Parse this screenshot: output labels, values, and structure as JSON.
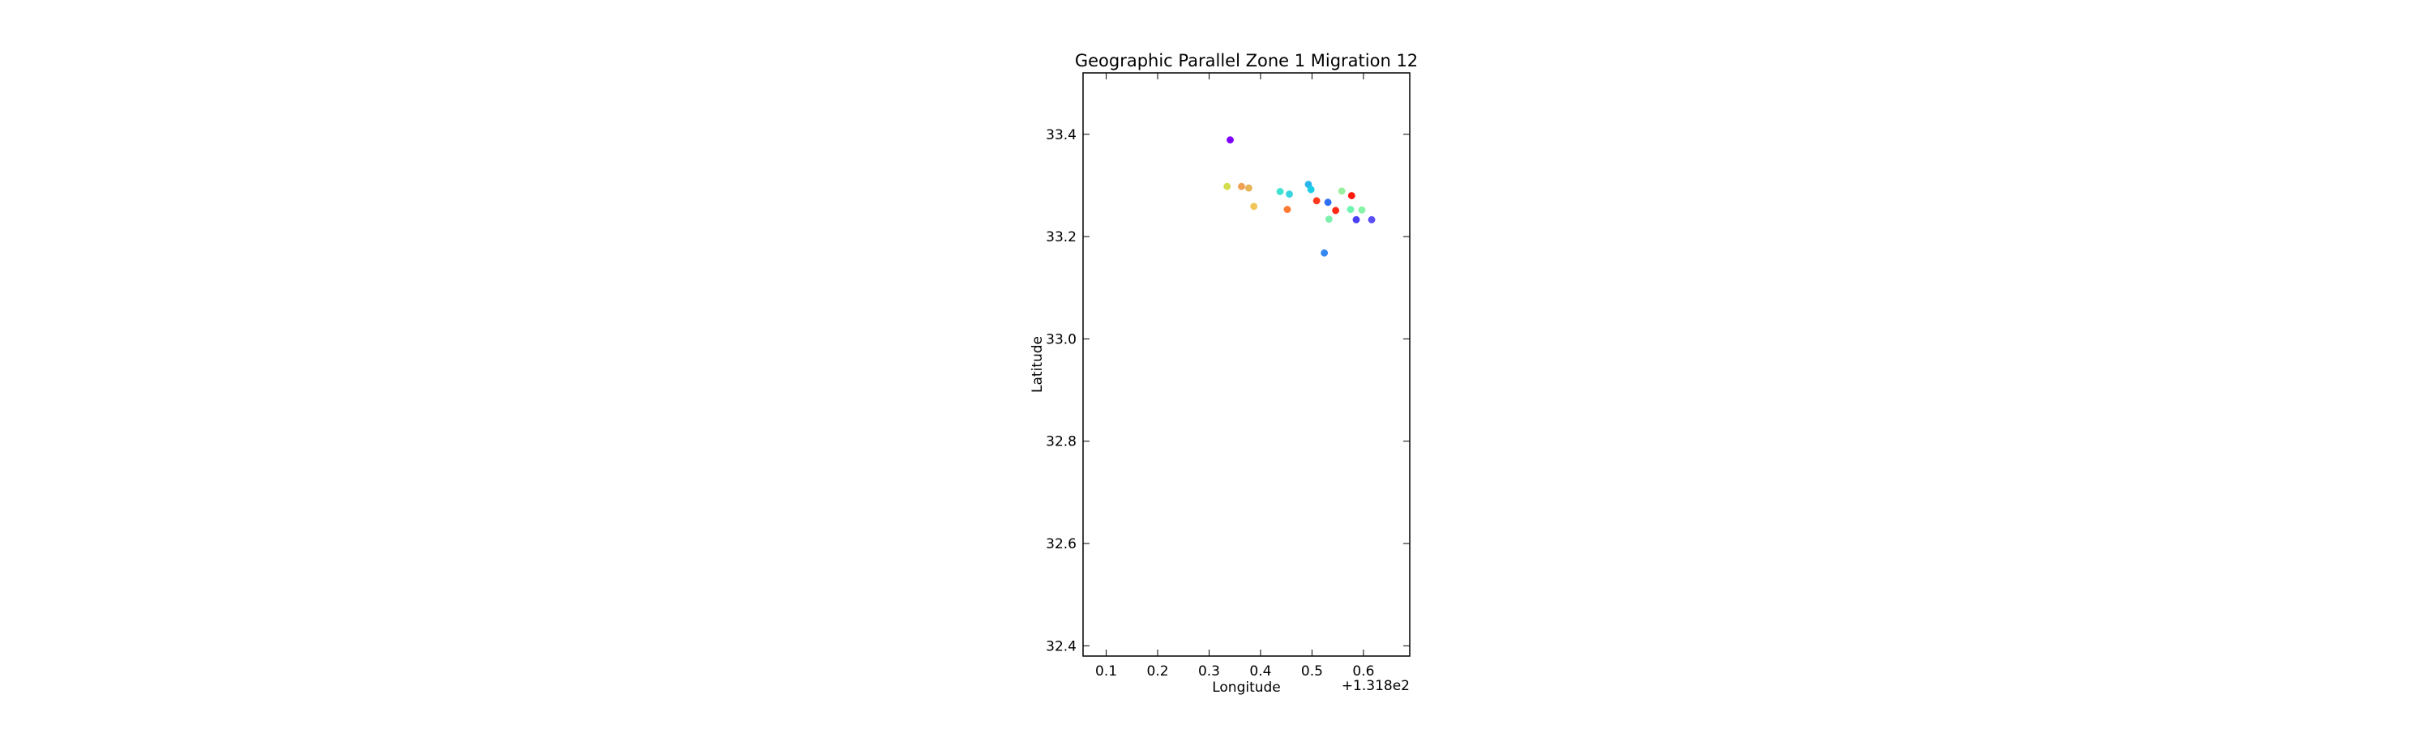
{
  "chart_data": {
    "type": "scatter",
    "title": "Geographic Parallel Zone 1 Migration 12",
    "xlabel": "Longitude",
    "ylabel": "Latitude",
    "x_offset_label": "+1.318e2",
    "xlim": [
      0.055,
      0.69
    ],
    "ylim": [
      32.38,
      33.52
    ],
    "x_ticks": [
      0.1,
      0.2,
      0.3,
      0.4,
      0.5,
      0.6
    ],
    "x_tick_labels": [
      "0.1",
      "0.2",
      "0.3",
      "0.4",
      "0.5",
      "0.6"
    ],
    "y_ticks": [
      32.4,
      32.6,
      32.8,
      33.0,
      33.2,
      33.4
    ],
    "y_tick_labels": [
      "32.4",
      "32.6",
      "32.8",
      "33.0",
      "33.2",
      "33.4"
    ],
    "grid": false,
    "points": [
      {
        "x": 0.341,
        "y": 33.389,
        "color": "#8000ff"
      },
      {
        "x": 0.335,
        "y": 33.298,
        "color": "#d4dd4e"
      },
      {
        "x": 0.363,
        "y": 33.298,
        "color": "#f0a053"
      },
      {
        "x": 0.377,
        "y": 33.295,
        "color": "#e6b454"
      },
      {
        "x": 0.387,
        "y": 33.259,
        "color": "#f0c55a"
      },
      {
        "x": 0.438,
        "y": 33.288,
        "color": "#3fe4d0"
      },
      {
        "x": 0.456,
        "y": 33.283,
        "color": "#38d3e0"
      },
      {
        "x": 0.452,
        "y": 33.253,
        "color": "#ff7a33"
      },
      {
        "x": 0.493,
        "y": 33.302,
        "color": "#2ab5ee"
      },
      {
        "x": 0.498,
        "y": 33.292,
        "color": "#1ccde6"
      },
      {
        "x": 0.509,
        "y": 33.27,
        "color": "#ff3a1d"
      },
      {
        "x": 0.531,
        "y": 33.267,
        "color": "#2d6ff5"
      },
      {
        "x": 0.546,
        "y": 33.251,
        "color": "#ff2a15"
      },
      {
        "x": 0.558,
        "y": 33.289,
        "color": "#9af0a0"
      },
      {
        "x": 0.577,
        "y": 33.28,
        "color": "#ff1a0f"
      },
      {
        "x": 0.575,
        "y": 33.253,
        "color": "#6ff5b0"
      },
      {
        "x": 0.597,
        "y": 33.252,
        "color": "#86f4a6"
      },
      {
        "x": 0.533,
        "y": 33.234,
        "color": "#7ef0ae"
      },
      {
        "x": 0.586,
        "y": 33.233,
        "color": "#4a40f2"
      },
      {
        "x": 0.616,
        "y": 33.233,
        "color": "#5a4ff2"
      },
      {
        "x": 0.524,
        "y": 33.168,
        "color": "#3488f0"
      }
    ]
  }
}
